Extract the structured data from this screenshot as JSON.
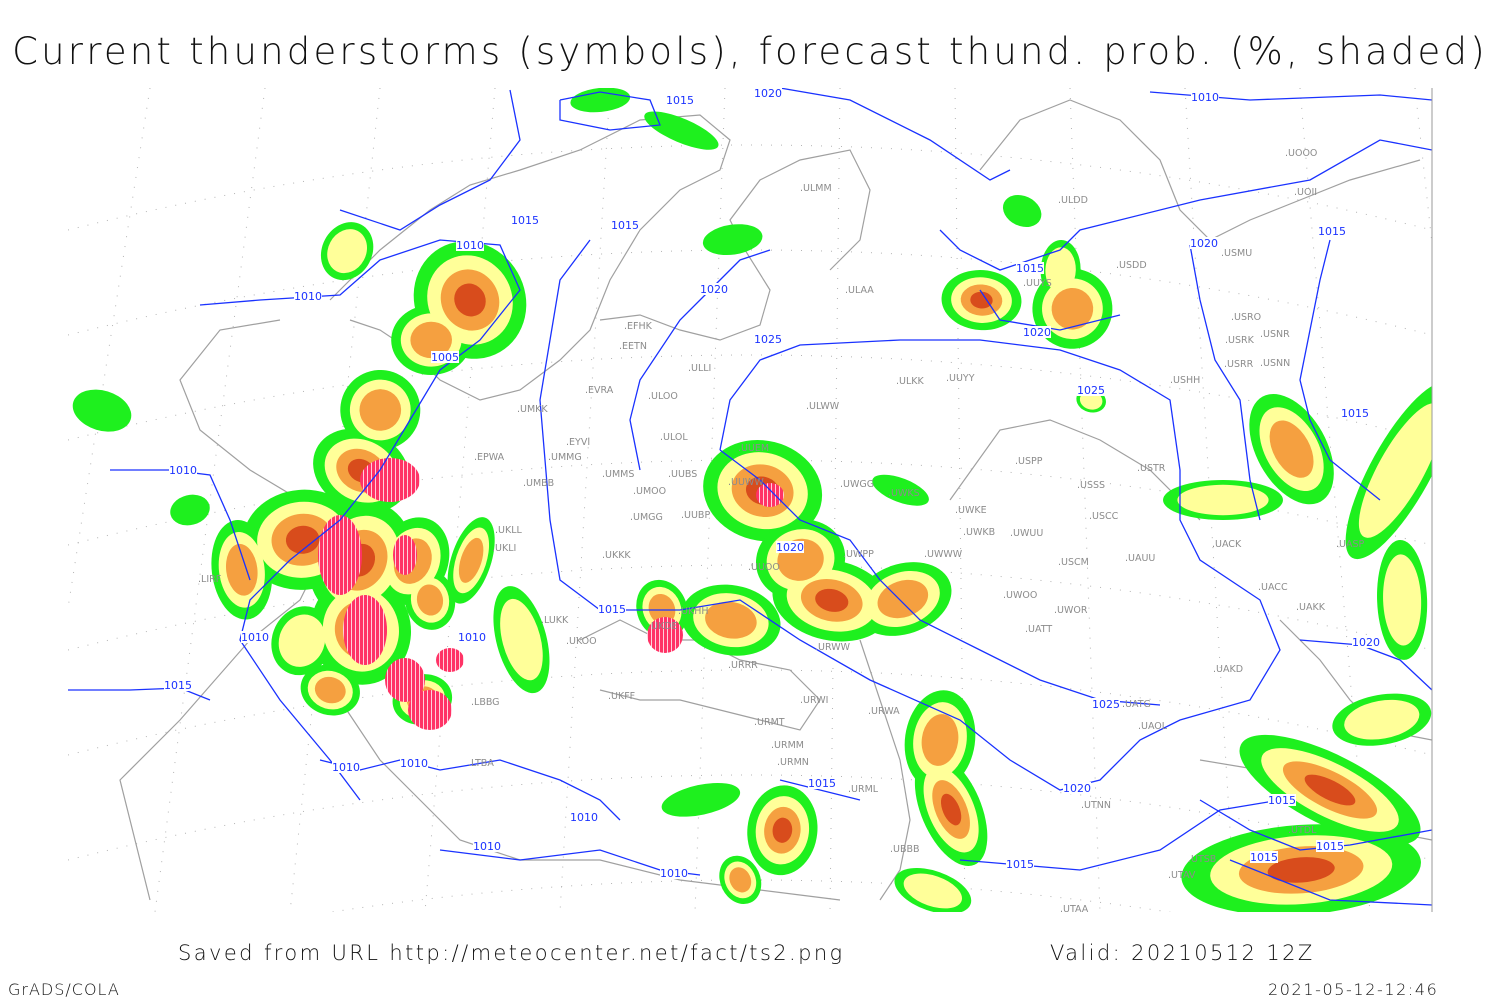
{
  "title": "Current thunderstorms (symbols), forecast thund. prob. (%, shaded)",
  "footer": {
    "saved_from": "Saved from URL http://meteocenter.net/fact/ts2.png",
    "valid": "Valid: 20210512 12Z",
    "software": "GrADS/COLA",
    "timestamp": "2021-05-12-12:46"
  },
  "colors": {
    "prob_low": "#1ef01e",
    "prob_mid": "#ffff99",
    "prob_high": "#f5a040",
    "prob_max": "#d84c1c",
    "thunderstorm_symbol": "#ff3366",
    "isobar": "#1a32ff",
    "coastline": "#a0a0a0",
    "station": "#8c8c8c"
  },
  "isobar_labels": [
    "1015",
    "1020",
    "1010",
    "1015",
    "1015",
    "1010",
    "1010",
    "1020",
    "1025",
    "1005",
    "1015",
    "1020",
    "1020",
    "1015",
    "1025",
    "1015",
    "1010",
    "1020",
    "1015",
    "1010",
    "1010",
    "1015",
    "1010",
    "1010",
    "1010",
    "1010",
    "1010",
    "1015",
    "1020",
    "1025",
    "1015",
    "1020",
    "1015",
    "1015",
    "1015"
  ],
  "stations": [
    "ULMM",
    "ULDD",
    "USDD",
    "UUYS",
    "ULAA",
    "EFHK",
    "EETN",
    "ULLI",
    "EVRA",
    "ULOO",
    "ULKK",
    "UUYY",
    "ULWW",
    "UMKK",
    "EYVI",
    "ULOL",
    "EPWA",
    "UMMG",
    "UUEM",
    "UMMS",
    "UMOO",
    "UUBS",
    "UUWW",
    "UWGG",
    "UWKS",
    "UMBB",
    "USPP",
    "USTR",
    "USSS",
    "UWKE",
    "USCC",
    "UWKB",
    "UWUU",
    "UMGG",
    "UUBP",
    "UKLL",
    "UKLI",
    "UWPP",
    "UWWW",
    "UKKK",
    "UUOO",
    "USCM",
    "UAUU",
    "UWOO",
    "UWOR",
    "URRR",
    "UKFF",
    "URWI",
    "UKOO",
    "LUKK",
    "UATT",
    "URWW",
    "URWA",
    "UAKD",
    "UAOL",
    "UACC",
    "UAKK",
    "UACK",
    "UASP",
    "UATG",
    "UTNN",
    "URMT",
    "URMM",
    "URMN",
    "URML",
    "UBBB",
    "UTAA",
    "UTAV",
    "UTSB",
    "UTDL",
    "LBBG",
    "LTBA",
    "LIRF",
    "UOOO",
    "UOII",
    "USMU",
    "USRO",
    "USRK",
    "USNR",
    "USRR",
    "USNN",
    "USHH",
    "UKHH",
    "UKDE"
  ]
}
